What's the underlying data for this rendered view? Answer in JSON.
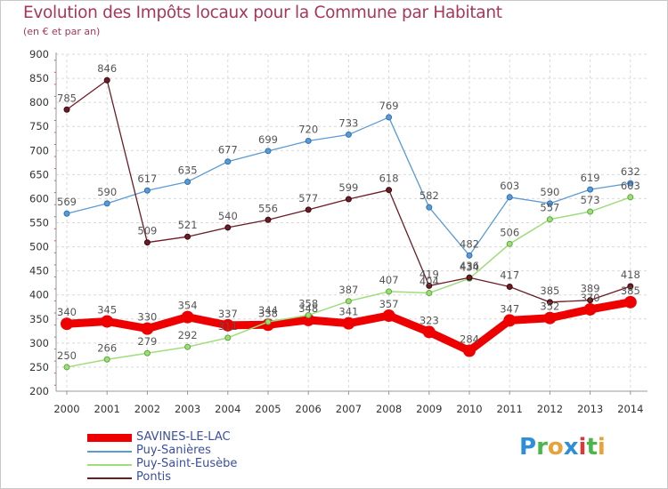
{
  "title": "Evolution des Impôts locaux pour la Commune par Habitant",
  "subtitle": "(en € et par an)",
  "logo": {
    "text": "Proxiti",
    "colors": [
      "#2e8fd8",
      "#49b849",
      "#e8a23a",
      "#2e8fd8",
      "#d43a3a",
      "#49b849",
      "#e8a23a"
    ]
  },
  "chart_data": {
    "type": "line",
    "x": [
      "2000",
      "2001",
      "2002",
      "2003",
      "2004",
      "2005",
      "2006",
      "2007",
      "2008",
      "2009",
      "2010",
      "2011",
      "2012",
      "2013",
      "2014"
    ],
    "ylim": [
      200,
      900
    ],
    "yticks": [
      200,
      250,
      300,
      350,
      400,
      450,
      500,
      550,
      600,
      650,
      700,
      750,
      800,
      850,
      900
    ],
    "grid": true,
    "legend": "bottom-left",
    "series": [
      {
        "name": "SAVINES-LE-LAC",
        "color": "#ee0000",
        "width": 9,
        "values": [
          340,
          345,
          330,
          354,
          337,
          338,
          348,
          341,
          357,
          323,
          284,
          347,
          352,
          370,
          385
        ]
      },
      {
        "name": "Puy-Sanières",
        "color": "#5b9bd5",
        "width": 1.3,
        "values": [
          569,
          590,
          617,
          635,
          677,
          699,
          720,
          733,
          769,
          582,
          482,
          603,
          590,
          619,
          632
        ]
      },
      {
        "name": "Puy-Saint-Eusèbe",
        "color": "#9fdc7a",
        "width": 1.5,
        "values": [
          250,
          266,
          279,
          292,
          311,
          344,
          358,
          387,
          407,
          404,
          434,
          506,
          557,
          573,
          603
        ]
      },
      {
        "name": "Pontis",
        "color": "#6b1c24",
        "width": 1.3,
        "values": [
          785,
          846,
          509,
          521,
          540,
          556,
          577,
          599,
          618,
          419,
          436,
          417,
          385,
          389,
          418
        ]
      }
    ]
  }
}
